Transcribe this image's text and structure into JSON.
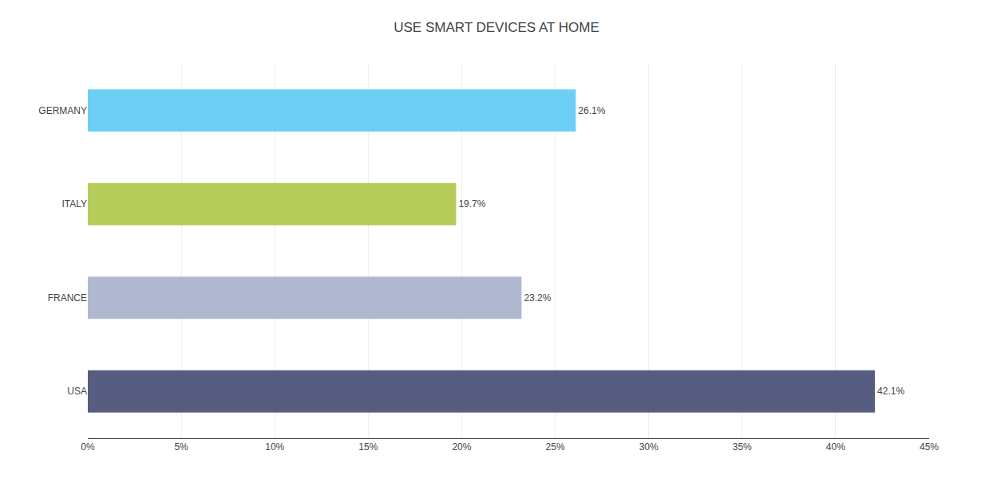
{
  "chart_data": {
    "type": "bar",
    "orientation": "horizontal",
    "title": "USE SMART DEVICES AT HOME",
    "categories": [
      "GERMANY",
      "ITALY",
      "FRANCE",
      "USA"
    ],
    "values": [
      26.1,
      19.7,
      23.2,
      42.1
    ],
    "value_labels": [
      "26.1%",
      "19.7%",
      "23.2%",
      "42.1%"
    ],
    "data_labels": true,
    "colors": [
      "#6dcff6",
      "#b5cc5a",
      "#b0b8d0",
      "#565d80"
    ],
    "xlim": [
      0,
      45
    ],
    "xticks": [
      {
        "value": 0,
        "label": "0%"
      },
      {
        "value": 5,
        "label": "5%"
      },
      {
        "value": 10,
        "label": "10%"
      },
      {
        "value": 15,
        "label": "15%"
      },
      {
        "value": 20,
        "label": "20%"
      },
      {
        "value": 25,
        "label": "25%"
      },
      {
        "value": 30,
        "label": "30%"
      },
      {
        "value": 35,
        "label": "35%"
      },
      {
        "value": 40,
        "label": "40%"
      },
      {
        "value": 45,
        "label": "45%"
      }
    ],
    "grid": true
  }
}
